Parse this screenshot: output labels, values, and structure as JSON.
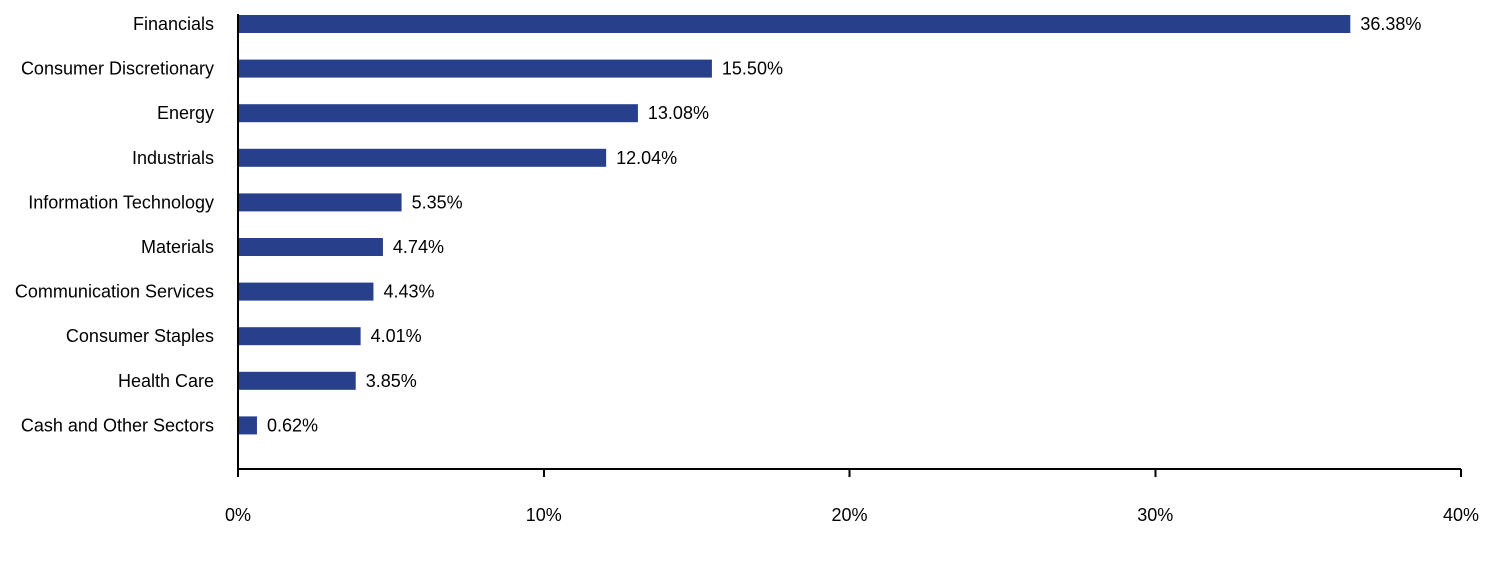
{
  "chart_data": {
    "type": "bar",
    "orientation": "horizontal",
    "categories": [
      "Financials",
      "Consumer Discretionary",
      "Energy",
      "Industrials",
      "Information Technology",
      "Materials",
      "Communication Services",
      "Consumer Staples",
      "Health Care",
      "Cash and Other Sectors"
    ],
    "values": [
      36.38,
      15.5,
      13.08,
      12.04,
      5.35,
      4.74,
      4.43,
      4.01,
      3.85,
      0.62
    ],
    "value_labels": [
      "36.38%",
      "15.50%",
      "13.08%",
      "12.04%",
      "5.35%",
      "4.74%",
      "4.43%",
      "4.01%",
      "3.85%",
      "0.62%"
    ],
    "xlim": [
      0,
      40
    ],
    "x_ticks": [
      0,
      10,
      20,
      30,
      40
    ],
    "x_tick_labels": [
      "0%",
      "10%",
      "20%",
      "30%",
      "40%"
    ],
    "grid": false,
    "legend": "none",
    "bar_color": "#283F8C"
  }
}
